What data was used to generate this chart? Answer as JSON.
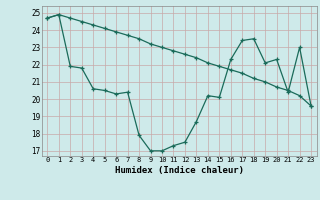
{
  "xlabel": "Humidex (Indice chaleur)",
  "background_color": "#ceeaea",
  "line_color": "#1a6b5a",
  "xlim_min": -0.5,
  "xlim_max": 23.5,
  "ylim_min": 16.7,
  "ylim_max": 25.4,
  "yticks": [
    17,
    18,
    19,
    20,
    21,
    22,
    23,
    24,
    25
  ],
  "xticks": [
    0,
    1,
    2,
    3,
    4,
    5,
    6,
    7,
    8,
    9,
    10,
    11,
    12,
    13,
    14,
    15,
    16,
    17,
    18,
    19,
    20,
    21,
    22,
    23
  ],
  "series1_x": [
    0,
    1,
    2,
    3,
    4,
    5,
    6,
    7,
    8,
    9,
    10,
    11,
    12,
    13,
    14,
    15,
    16,
    17,
    18,
    19,
    20,
    21,
    22,
    23
  ],
  "series1_y": [
    24.7,
    24.9,
    24.7,
    24.5,
    24.3,
    24.1,
    23.9,
    23.7,
    23.5,
    23.2,
    23.0,
    22.8,
    22.6,
    22.4,
    22.1,
    21.9,
    21.7,
    21.5,
    21.2,
    21.0,
    20.7,
    20.5,
    20.2,
    19.6
  ],
  "series2_x": [
    0,
    1,
    2,
    3,
    4,
    5,
    6,
    7,
    8,
    9,
    10,
    11,
    12,
    13,
    14,
    15,
    16,
    17,
    18,
    19,
    20,
    21,
    22,
    23
  ],
  "series2_y": [
    24.7,
    24.9,
    21.9,
    21.8,
    20.6,
    20.5,
    20.3,
    20.4,
    17.9,
    17.0,
    17.0,
    17.3,
    17.5,
    18.7,
    20.2,
    20.1,
    22.3,
    23.4,
    23.5,
    22.1,
    22.3,
    20.4,
    23.0,
    19.6
  ]
}
